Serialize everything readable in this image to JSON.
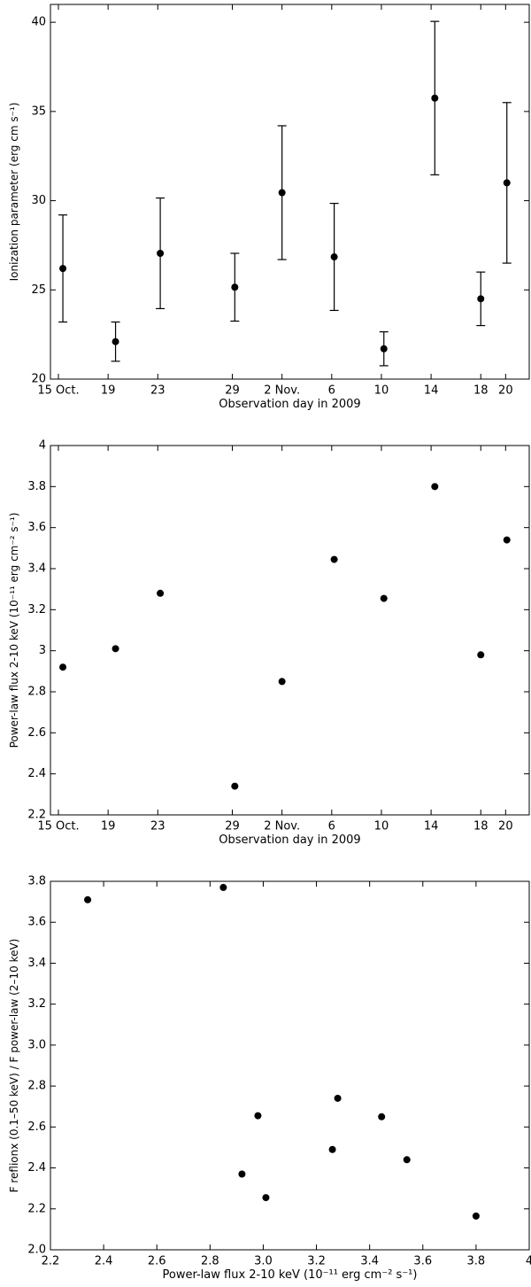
{
  "chart_data": [
    {
      "type": "scatter",
      "x_label": "Observation day in 2009",
      "y_label": "Ionization parameter (erg cm s⁻¹)",
      "x": [
        15.36,
        19.6,
        23.2,
        29.2,
        33.0,
        37.2,
        41.2,
        45.3,
        49.0,
        51.1
      ],
      "values": [
        26.2,
        22.1,
        27.05,
        25.15,
        30.45,
        26.85,
        21.7,
        35.75,
        24.5,
        31.0
      ],
      "errors": [
        3.0,
        1.1,
        3.1,
        1.9,
        3.75,
        3.0,
        0.95,
        4.3,
        1.5,
        4.5
      ],
      "color": "#000000",
      "xlim": [
        14.36,
        52.9
      ],
      "ylim": [
        20,
        41
      ],
      "xticks": [
        {
          "value": 15,
          "label": "15 Oct."
        },
        19,
        23,
        29,
        {
          "value": 33,
          "label": "2 Nov."
        },
        {
          "value": 37,
          "label": "6"
        },
        {
          "value": 41,
          "label": "10"
        },
        {
          "value": 45,
          "label": "14"
        },
        {
          "value": 49,
          "label": "18"
        },
        {
          "value": 51,
          "label": "20"
        }
      ],
      "yticks": [
        20,
        25,
        30,
        35,
        40
      ]
    },
    {
      "type": "scatter",
      "x_label": "Observation day in 2009",
      "y_label": "Power-law flux 2-10 keV (10⁻¹¹ erg cm⁻² s⁻¹)",
      "x": [
        15.36,
        19.6,
        23.2,
        29.2,
        33.0,
        37.2,
        41.2,
        45.3,
        49.0,
        51.1
      ],
      "values": [
        2.92,
        3.01,
        3.28,
        2.34,
        2.85,
        3.445,
        3.255,
        3.8,
        2.98,
        3.54
      ],
      "color": "#000000",
      "xlim": [
        14.36,
        52.9
      ],
      "ylim": [
        2.2,
        4.0
      ],
      "xticks": [
        {
          "value": 15,
          "label": "15 Oct."
        },
        19,
        23,
        29,
        {
          "value": 33,
          "label": "2 Nov."
        },
        {
          "value": 37,
          "label": "6"
        },
        {
          "value": 41,
          "label": "10"
        },
        {
          "value": 45,
          "label": "14"
        },
        {
          "value": 49,
          "label": "18"
        },
        {
          "value": 51,
          "label": "20"
        }
      ],
      "yticks": [
        2.2,
        2.4,
        2.6,
        2.8,
        3,
        3.2,
        3.4,
        3.6,
        3.8,
        4
      ]
    },
    {
      "type": "scatter",
      "x_label": "Power-law flux 2-10 keV (10⁻¹¹ erg cm⁻² s⁻¹)",
      "y_label": "F reflionx (0.1–50 keV) / F power-law (2–10 keV)",
      "x": [
        2.34,
        2.85,
        2.92,
        3.01,
        2.98,
        3.28,
        3.26,
        3.445,
        3.54,
        3.8
      ],
      "values": [
        3.71,
        3.77,
        2.37,
        2.255,
        2.655,
        2.74,
        2.49,
        2.65,
        2.44,
        2.165
      ],
      "color": "#000000",
      "xlim": [
        2.2,
        4.0
      ],
      "ylim": [
        2.0,
        3.8
      ],
      "xticks": [
        2.2,
        2.4,
        2.6,
        2.8,
        {
          "value": 3.0,
          "label": "3.0"
        },
        3.2,
        3.4,
        3.6,
        3.8,
        4
      ],
      "yticks": [
        {
          "value": 2.0,
          "label": "2.0"
        },
        2.2,
        2.4,
        2.6,
        2.8,
        {
          "value": 3.0,
          "label": "3.0"
        },
        3.2,
        3.4,
        3.6,
        3.8
      ]
    }
  ]
}
